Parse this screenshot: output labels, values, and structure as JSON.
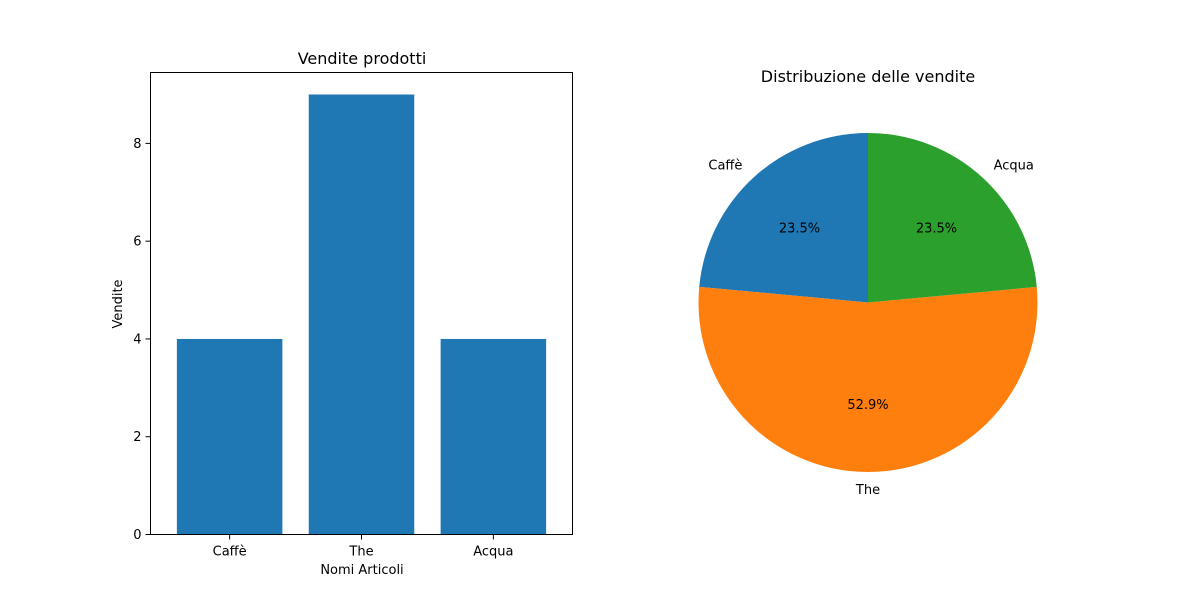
{
  "chart_data": [
    {
      "type": "bar",
      "title": "Vendite prodotti",
      "xlabel": "Nomi Articoli",
      "ylabel": "Vendite",
      "categories": [
        "Caffè",
        "The",
        "Acqua"
      ],
      "values": [
        4,
        9,
        4
      ],
      "yticks": [
        "0",
        "2",
        "4",
        "6",
        "8"
      ],
      "ylim": [
        0,
        9.45
      ],
      "grid": false,
      "color": "#1f77b4"
    },
    {
      "type": "pie",
      "title": "Distribuzione delle vendite",
      "labels": [
        "Caffè",
        "The",
        "Acqua"
      ],
      "values": [
        4,
        9,
        4
      ],
      "percent_labels": [
        "23.5%",
        "52.9%",
        "23.5%"
      ],
      "colors": [
        "#1f77b4",
        "#ff7f0e",
        "#2ca02c"
      ],
      "start_angle_deg": 90,
      "direction": "counterclockwise"
    }
  ]
}
